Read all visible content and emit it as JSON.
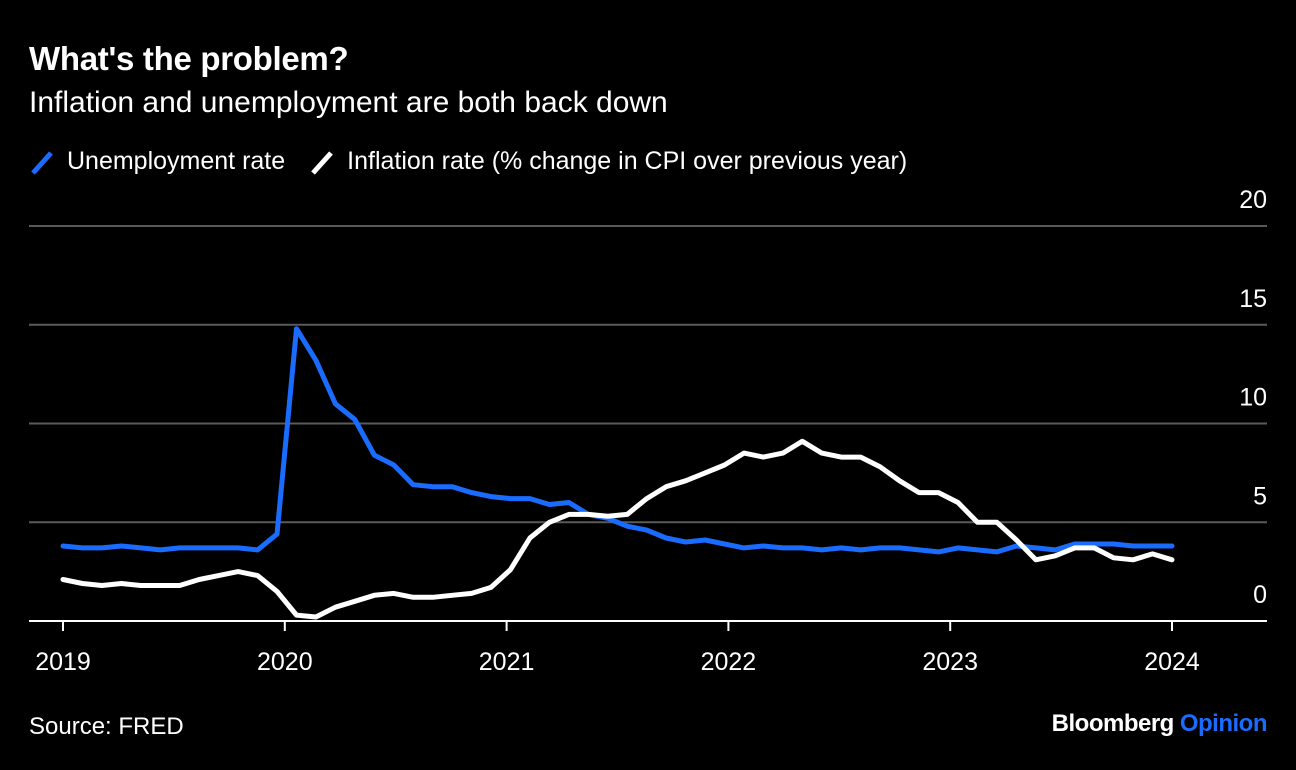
{
  "title": "What's the problem?",
  "subtitle": "Inflation and unemployment are both back down",
  "source": "Source: FRED",
  "brand": {
    "name": "Bloomberg",
    "suffix": "Opinion"
  },
  "colors": {
    "background": "#000000",
    "unemployment": "#1a6cff",
    "inflation": "#ffffff",
    "grid": "#5a5a5a",
    "text": "#ffffff"
  },
  "chart_data": {
    "type": "line",
    "x_axis": {
      "min": 2019,
      "max": 2024,
      "tick_labels": [
        "2019",
        "2020",
        "2021",
        "2022",
        "2023",
        "2024"
      ]
    },
    "y_axis": {
      "min": 0,
      "max": 20,
      "ticks": [
        "0",
        "5",
        "10",
        "15",
        "20"
      ],
      "position": "right",
      "grid": true
    },
    "legend_position": "top-left",
    "series": [
      {
        "name": "Unemployment rate",
        "color": "#1a6cff",
        "values": [
          3.8,
          3.7,
          3.7,
          3.8,
          3.7,
          3.6,
          3.7,
          3.7,
          3.7,
          3.7,
          3.6,
          4.4,
          14.8,
          13.2,
          11.0,
          10.2,
          8.4,
          7.9,
          6.9,
          6.8,
          6.8,
          6.5,
          6.3,
          6.2,
          6.2,
          5.9,
          6.0,
          5.4,
          5.2,
          4.8,
          4.6,
          4.2,
          4.0,
          4.1,
          3.9,
          3.7,
          3.8,
          3.7,
          3.7,
          3.6,
          3.7,
          3.6,
          3.7,
          3.7,
          3.6,
          3.5,
          3.7,
          3.6,
          3.5,
          3.8,
          3.7,
          3.6,
          3.9,
          3.9,
          3.9,
          3.8,
          3.8,
          3.8
        ]
      },
      {
        "name": "Inflation rate (% change in CPI over previous year)",
        "color": "#ffffff",
        "values": [
          2.1,
          1.9,
          1.8,
          1.9,
          1.8,
          1.8,
          1.8,
          2.1,
          2.3,
          2.5,
          2.3,
          1.5,
          0.3,
          0.2,
          0.7,
          1.0,
          1.3,
          1.4,
          1.2,
          1.2,
          1.3,
          1.4,
          1.7,
          2.6,
          4.2,
          5.0,
          5.4,
          5.4,
          5.3,
          5.4,
          6.2,
          6.8,
          7.1,
          7.5,
          7.9,
          8.5,
          8.3,
          8.5,
          9.1,
          8.5,
          8.3,
          8.3,
          7.8,
          7.1,
          6.5,
          6.5,
          6.0,
          5.0,
          5.0,
          4.1,
          3.1,
          3.3,
          3.7,
          3.7,
          3.2,
          3.1,
          3.4,
          3.1
        ]
      }
    ]
  }
}
